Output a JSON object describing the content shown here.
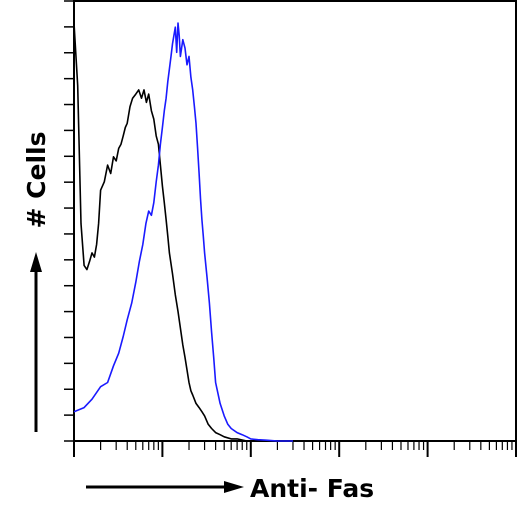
{
  "chart_data": {
    "type": "line",
    "title": "",
    "xlabel": "Anti- Fas",
    "ylabel": "# Cells",
    "x_scale": "log",
    "xlim": [
      1,
      100000
    ],
    "ylim": [
      0,
      100
    ],
    "grid": false,
    "legend": "none",
    "series": [
      {
        "color": "#000000",
        "x": [
          1.0,
          1.1,
          1.2,
          1.3,
          1.4,
          1.5,
          1.6,
          1.7,
          1.8,
          1.9,
          2.0,
          2.2,
          2.4,
          2.6,
          2.8,
          3.0,
          3.2,
          3.4,
          3.6,
          3.8,
          4.0,
          4.3,
          4.6,
          5.0,
          5.4,
          5.8,
          6.2,
          6.6,
          7.0,
          7.5,
          8.0,
          8.5,
          9.0,
          9.5,
          10.0,
          10.5,
          11.0,
          11.5,
          12.0,
          13.0,
          14.0,
          15.0,
          16.0,
          17.0,
          18.0,
          19.0,
          20.0,
          21.0,
          22.0,
          24.0,
          26.0,
          28.0,
          30.0,
          33.0,
          36.0,
          40.0,
          45.0,
          50.0,
          60.0,
          70.0,
          90.0,
          120.0,
          160.0
        ],
        "y": [
          100,
          85,
          52,
          42,
          41,
          43,
          45,
          44,
          47,
          52,
          60,
          62,
          66,
          64,
          68,
          67,
          70,
          71,
          73,
          75,
          76,
          80,
          82,
          83,
          84,
          82,
          84,
          81,
          83,
          79,
          77,
          73,
          71,
          66,
          61,
          57,
          53,
          49,
          45,
          40,
          35,
          31,
          27,
          23,
          20,
          17,
          14,
          12,
          11,
          9,
          8,
          7,
          6,
          4,
          3,
          2,
          1.5,
          1,
          0.5,
          0.5,
          0,
          0,
          0
        ]
      },
      {
        "color": "#1a1aff",
        "x": [
          1.0,
          1.3,
          1.6,
          2.0,
          2.4,
          2.8,
          3.2,
          3.6,
          4.0,
          4.5,
          5.0,
          5.5,
          6.0,
          6.5,
          7.0,
          7.5,
          8.0,
          8.5,
          9.0,
          9.5,
          10.0,
          10.5,
          11.0,
          11.5,
          12.0,
          12.5,
          13.0,
          13.5,
          14.0,
          14.5,
          15.0,
          15.5,
          16.0,
          17.0,
          18.0,
          19.0,
          20.0,
          21.0,
          22.0,
          23.0,
          24.0,
          25.0,
          26.0,
          27.0,
          28.0,
          29.0,
          30.0,
          32.0,
          34.0,
          36.0,
          38.0,
          40.0,
          45.0,
          50.0,
          55.0,
          60.0,
          70.0,
          80.0,
          90.0,
          100.0,
          120.0,
          150.0,
          200.0,
          300.0
        ],
        "y": [
          7,
          8,
          10,
          13,
          14,
          18,
          21,
          25,
          29,
          33,
          38,
          43,
          47,
          52,
          55,
          54,
          57,
          62,
          66,
          71,
          75,
          79,
          82,
          86,
          89,
          92,
          95,
          97,
          99,
          93,
          100,
          97,
          92,
          96,
          94,
          90,
          92,
          87,
          84,
          80,
          76,
          70,
          64,
          58,
          53,
          49,
          45,
          39,
          33,
          26,
          20,
          14,
          9,
          6,
          4,
          3,
          2,
          1.5,
          1,
          0.5,
          0.3,
          0.2,
          0,
          0
        ]
      }
    ]
  }
}
